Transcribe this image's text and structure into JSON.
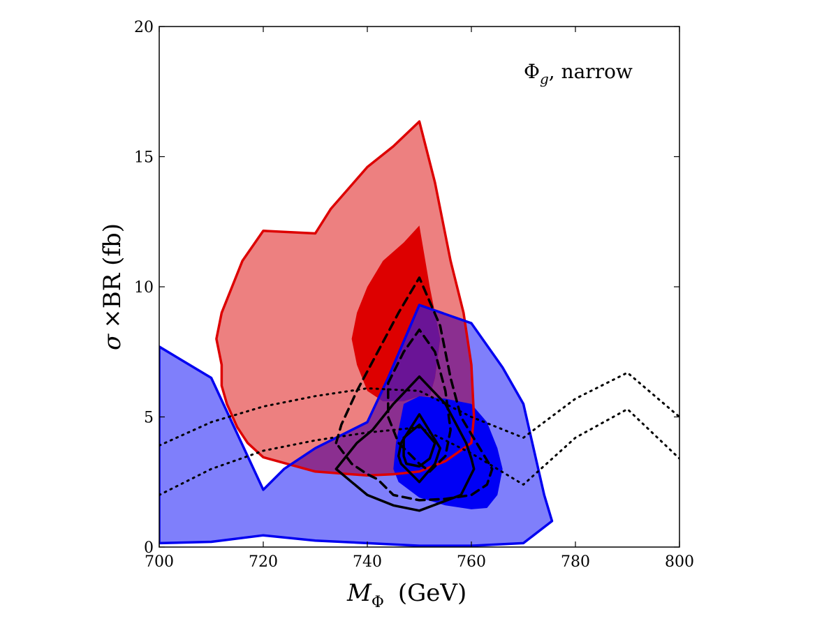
{
  "chart_data": {
    "type": "area",
    "annotation": {
      "symbol": "Φ",
      "subscript": "g",
      "suffix": ", narrow"
    },
    "xlabel": {
      "symbol": "M",
      "subscript": "Φ",
      "unit": "(GeV)"
    },
    "ylabel": {
      "symbol": "σ",
      "text": "×BR (fb)"
    },
    "xlim": [
      700,
      800
    ],
    "ylim": [
      0,
      20
    ],
    "x_ticks": [
      700,
      720,
      740,
      760,
      780,
      800
    ],
    "y_ticks": [
      0,
      5,
      10,
      15,
      20
    ],
    "grid": false,
    "legend": "none",
    "colors": {
      "red_fill_outer": "#ed8080",
      "red_fill_inner": "#dd0000",
      "red_line": "#dd0000",
      "blue_fill_outer": "#7f7ffb",
      "blue_fill_inner": "#0000f5",
      "blue_line": "#0000f0",
      "overlap": "#6a1496",
      "black": "#000000"
    },
    "regions": {
      "blue_outer": [
        [
          700,
          7.7
        ],
        [
          710,
          6.5
        ],
        [
          720,
          2.2
        ],
        [
          724,
          3.0
        ],
        [
          730,
          3.8
        ],
        [
          740,
          4.8
        ],
        [
          744,
          6.5
        ],
        [
          750,
          9.3
        ],
        [
          760,
          8.6
        ],
        [
          766,
          6.9
        ],
        [
          770,
          5.5
        ],
        [
          774,
          2.0
        ],
        [
          775.5,
          1.0
        ],
        [
          770,
          0.15
        ],
        [
          760,
          0.05
        ],
        [
          750,
          0.05
        ],
        [
          740,
          0.15
        ],
        [
          730,
          0.25
        ],
        [
          720,
          0.45
        ],
        [
          710,
          0.2
        ],
        [
          700,
          0.15
        ]
      ],
      "red_outer": [
        [
          712,
          7.0
        ],
        [
          711,
          8.0
        ],
        [
          712,
          9.0
        ],
        [
          714,
          10.0
        ],
        [
          716,
          11.0
        ],
        [
          720,
          12.15
        ],
        [
          730,
          12.05
        ],
        [
          733,
          13.0
        ],
        [
          740,
          14.6
        ],
        [
          745,
          15.4
        ],
        [
          750,
          16.35
        ],
        [
          753,
          14.0
        ],
        [
          756,
          11.0
        ],
        [
          758.5,
          9.0
        ],
        [
          760,
          7.0
        ],
        [
          760.5,
          5.0
        ],
        [
          760,
          4.0
        ],
        [
          755,
          3.3
        ],
        [
          750,
          2.9
        ],
        [
          745,
          2.8
        ],
        [
          740,
          2.75
        ],
        [
          730,
          2.9
        ],
        [
          720,
          3.45
        ],
        [
          717,
          4.0
        ],
        [
          715,
          4.6
        ],
        [
          713,
          5.5
        ],
        [
          712,
          6.2
        ]
      ],
      "blue_inner": [
        [
          746,
          4.5
        ],
        [
          747,
          5.5
        ],
        [
          750,
          5.8
        ],
        [
          755,
          5.7
        ],
        [
          760,
          5.5
        ],
        [
          763,
          4.8
        ],
        [
          765,
          3.8
        ],
        [
          766,
          3.0
        ],
        [
          765,
          2.0
        ],
        [
          763,
          1.5
        ],
        [
          760,
          1.45
        ],
        [
          755,
          1.6
        ],
        [
          750,
          1.9
        ],
        [
          746,
          2.5
        ],
        [
          745,
          3.0
        ],
        [
          745.5,
          4.0
        ]
      ],
      "red_inner": [
        [
          740,
          6.0
        ],
        [
          738,
          7.0
        ],
        [
          737,
          8.0
        ],
        [
          738,
          9.0
        ],
        [
          740,
          10.0
        ],
        [
          743,
          11.0
        ],
        [
          747,
          11.7
        ],
        [
          750,
          12.35
        ],
        [
          752,
          10.0
        ],
        [
          754,
          8.0
        ],
        [
          753,
          6.5
        ],
        [
          752,
          5.8
        ],
        [
          750,
          5.8
        ],
        [
          747,
          5.6
        ],
        [
          743,
          5.6
        ]
      ]
    },
    "contours": {
      "dashed": [
        [
          [
            734,
            4.0
          ],
          [
            735,
            4.7
          ],
          [
            738,
            6.0
          ],
          [
            742,
            7.5
          ],
          [
            746,
            9.0
          ],
          [
            750,
            10.35
          ],
          [
            754,
            8.5
          ],
          [
            756,
            6.5
          ],
          [
            758,
            5.0
          ],
          [
            761,
            4.0
          ],
          [
            764,
            3.0
          ],
          [
            763,
            2.4
          ],
          [
            760,
            2.0
          ],
          [
            755,
            1.85
          ],
          [
            750,
            1.8
          ],
          [
            745,
            2.0
          ],
          [
            742,
            2.6
          ],
          [
            740,
            2.8
          ],
          [
            737,
            3.2
          ],
          [
            734,
            4.0
          ]
        ],
        [
          [
            744,
            6.3
          ],
          [
            747,
            7.5
          ],
          [
            750,
            8.35
          ],
          [
            753,
            7.5
          ],
          [
            755,
            6.0
          ],
          [
            756,
            4.5
          ],
          [
            755,
            3.5
          ],
          [
            752,
            2.9
          ],
          [
            750,
            3.2
          ],
          [
            746,
            4.0
          ],
          [
            744,
            5.0
          ],
          [
            744,
            6.3
          ]
        ]
      ],
      "solid": [
        [
          [
            734,
            3.0
          ],
          [
            738,
            4.0
          ],
          [
            741,
            4.5
          ],
          [
            745,
            5.5
          ],
          [
            750,
            6.55
          ],
          [
            755,
            5.5
          ],
          [
            759,
            4.0
          ],
          [
            760,
            3.4
          ],
          [
            760.5,
            3.0
          ],
          [
            758,
            2.0
          ],
          [
            754,
            1.7
          ],
          [
            750,
            1.4
          ],
          [
            745,
            1.6
          ],
          [
            740,
            2.0
          ],
          [
            737,
            2.5
          ],
          [
            734,
            3.0
          ]
        ],
        [
          [
            746,
            3.5
          ],
          [
            746.5,
            4.0
          ],
          [
            750,
            5.1
          ],
          [
            754,
            3.8
          ],
          [
            753,
            3.2
          ],
          [
            750,
            2.5
          ],
          [
            746.5,
            3.2
          ],
          [
            746,
            3.5
          ]
        ],
        [
          [
            747,
            3.5
          ],
          [
            747,
            4.2
          ],
          [
            750,
            4.7
          ],
          [
            753,
            4.0
          ],
          [
            752,
            3.4
          ],
          [
            750,
            3.1
          ],
          [
            747.5,
            3.2
          ],
          [
            747,
            3.5
          ]
        ]
      ],
      "dotted": [
        [
          [
            700,
            3.9
          ],
          [
            710,
            4.8
          ],
          [
            720,
            5.4
          ],
          [
            730,
            5.8
          ],
          [
            740,
            6.1
          ],
          [
            750,
            6.0
          ],
          [
            760,
            5.0
          ],
          [
            770,
            4.2
          ],
          [
            780,
            5.7
          ],
          [
            790,
            6.7
          ],
          [
            800,
            5.0
          ]
        ],
        [
          [
            700,
            2.0
          ],
          [
            710,
            3.0
          ],
          [
            720,
            3.7
          ],
          [
            730,
            4.1
          ],
          [
            740,
            4.4
          ],
          [
            750,
            4.6
          ],
          [
            760,
            3.6
          ],
          [
            770,
            2.4
          ],
          [
            780,
            4.2
          ],
          [
            790,
            5.3
          ],
          [
            800,
            3.4
          ]
        ]
      ]
    }
  }
}
